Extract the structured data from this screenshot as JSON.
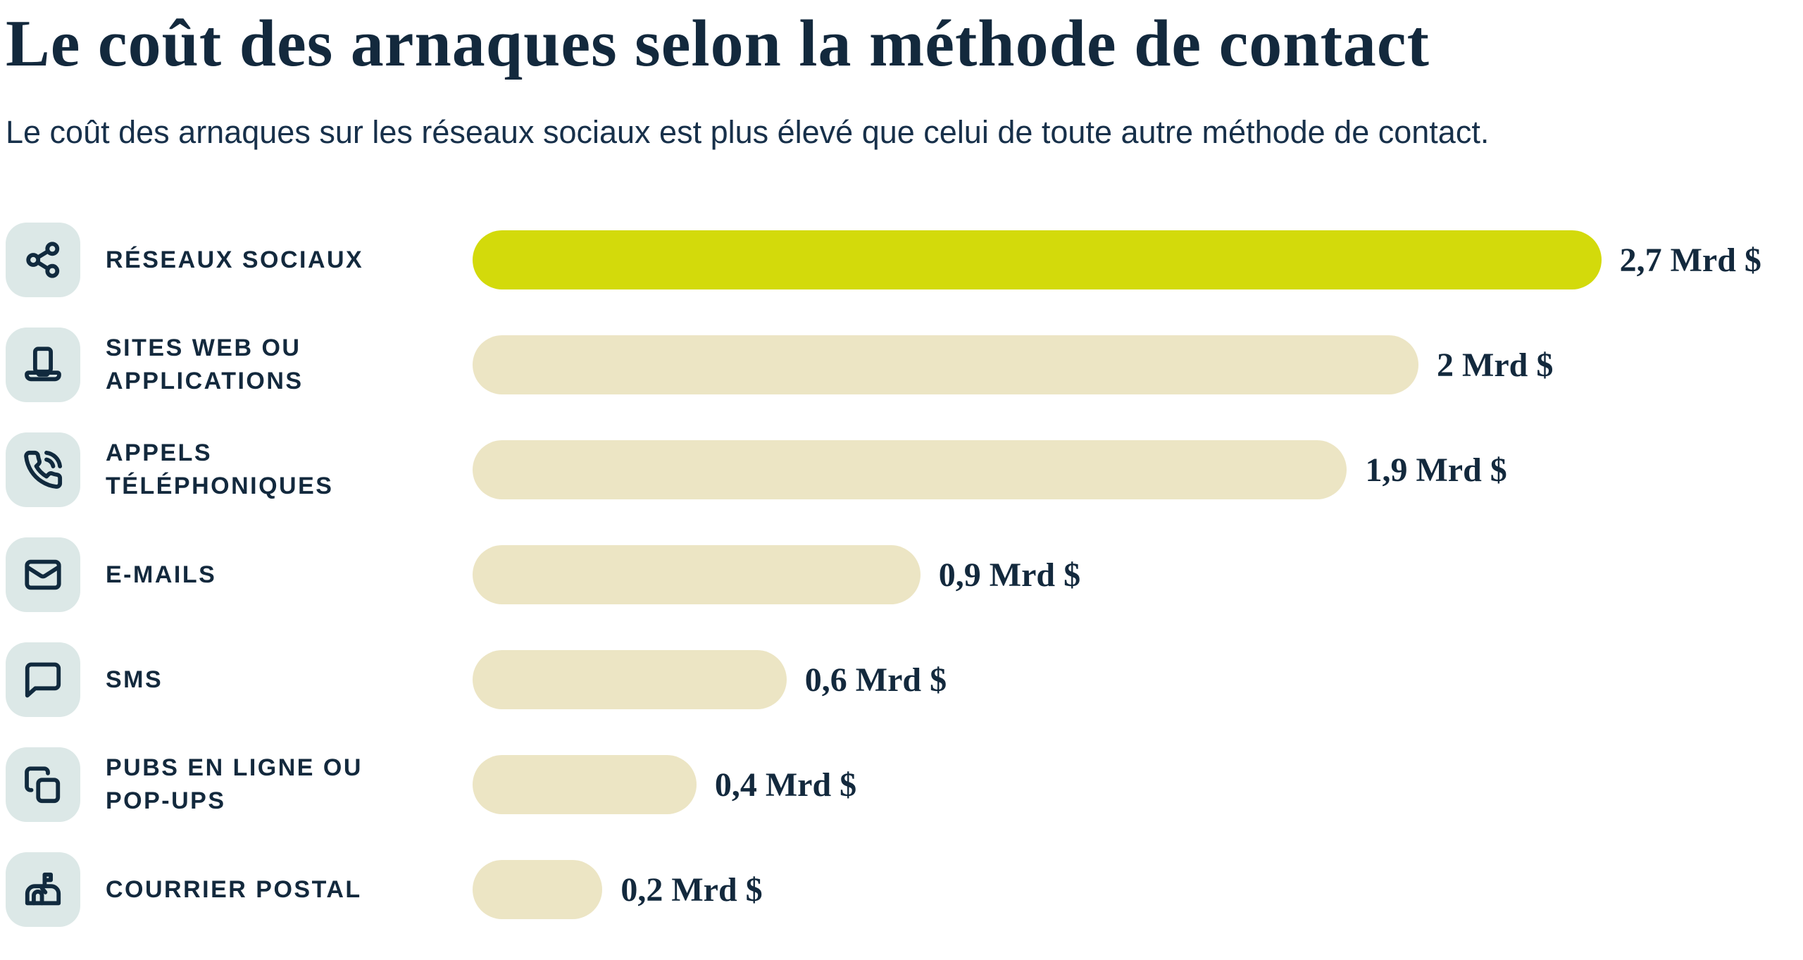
{
  "header": {
    "title": "Le coût des arnaques selon la méthode de contact",
    "subtitle": "Le coût des arnaques sur les réseaux sociaux est plus élevé que celui de toute autre méthode de contact."
  },
  "colors": {
    "text_navy": "#13293d",
    "highlight_bar": "#d3da0b",
    "default_bar": "#ece5c4",
    "icon_tile_bg": "#dce8e7"
  },
  "chart_data": {
    "type": "bar",
    "orientation": "horizontal",
    "unit": "Mrd $",
    "title": "Le coût des arnaques selon la méthode de contact",
    "xlim": [
      0,
      3.2
    ],
    "grid": false,
    "legend": "none",
    "value_label_position": "end-of-bar",
    "categories": [
      "RÉSEAUX SOCIAUX",
      "SITES WEB OU APPLICATIONS",
      "APPELS TÉLÉPHONIQUES",
      "E-MAILS",
      "SMS",
      "PUBS EN LIGNE OU POP-UPS",
      "COURRIER POSTAL"
    ],
    "values": [
      2.7,
      2.0,
      1.9,
      0.9,
      0.6,
      0.4,
      0.2
    ],
    "rows": [
      {
        "icon": "share-icon",
        "label": "RÉSEAUX SOCIAUX",
        "value": 2.7,
        "value_label": "2,7 Mrd $",
        "bar_pct": 85.2,
        "highlight": true,
        "color": "#d3da0b"
      },
      {
        "icon": "laptop-icon",
        "label": "SITES WEB OU\nAPPLICATIONS",
        "value": 2.0,
        "value_label": "2 Mrd $",
        "bar_pct": 71.4,
        "highlight": false,
        "color": "#ece5c4"
      },
      {
        "icon": "phone-call-icon",
        "label": "APPELS\nTÉLÉPHONIQUES",
        "value": 1.9,
        "value_label": "1,9 Mrd $",
        "bar_pct": 66.0,
        "highlight": false,
        "color": "#ece5c4"
      },
      {
        "icon": "mail-icon",
        "label": "E-MAILS",
        "value": 0.9,
        "value_label": "0,9 Mrd $",
        "bar_pct": 33.8,
        "highlight": false,
        "color": "#ece5c4"
      },
      {
        "icon": "message-icon",
        "label": "SMS",
        "value": 0.6,
        "value_label": "0,6 Mrd $",
        "bar_pct": 23.7,
        "highlight": false,
        "color": "#ece5c4"
      },
      {
        "icon": "copy-icon",
        "label": "PUBS EN LIGNE OU\nPOP-UPS",
        "value": 0.4,
        "value_label": "0,4 Mrd $",
        "bar_pct": 16.9,
        "highlight": false,
        "color": "#ece5c4"
      },
      {
        "icon": "mailbox-icon",
        "label": "COURRIER POSTAL",
        "value": 0.2,
        "value_label": "0,2 Mrd $",
        "bar_pct": 9.8,
        "highlight": false,
        "color": "#ece5c4"
      }
    ]
  }
}
